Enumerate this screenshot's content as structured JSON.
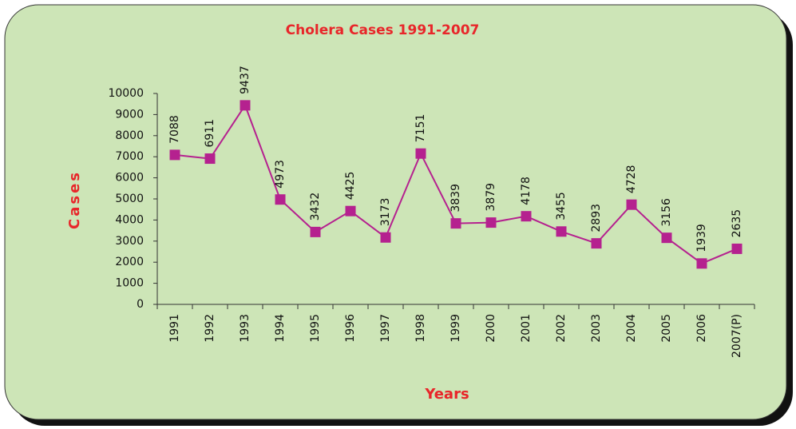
{
  "chart_data": {
    "type": "line",
    "title": "Cholera Cases 1991-2007",
    "xlabel": "Years",
    "ylabel": "Cases",
    "categories": [
      "1991",
      "1992",
      "1993",
      "1994",
      "1995",
      "1996",
      "1997",
      "1998",
      "1999",
      "2000",
      "2001",
      "2002",
      "2003",
      "2004",
      "2005",
      "2006",
      "2007(P)"
    ],
    "values": [
      7088,
      6911,
      9437,
      4973,
      3432,
      4425,
      3173,
      7151,
      3839,
      3879,
      4178,
      3455,
      2893,
      4728,
      3156,
      1939,
      2635
    ],
    "color": "#b5218f",
    "ylim": [
      0,
      10000
    ],
    "yticks": [
      0,
      1000,
      2000,
      3000,
      4000,
      5000,
      6000,
      7000,
      8000,
      9000,
      10000
    ]
  }
}
